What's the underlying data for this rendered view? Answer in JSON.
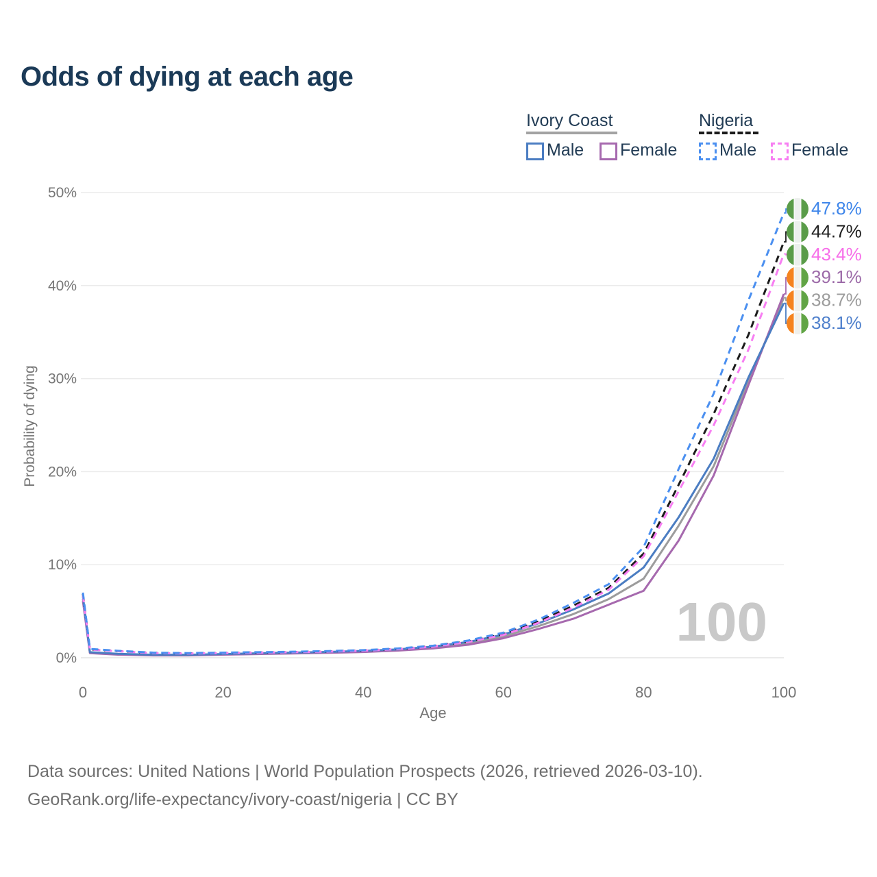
{
  "title": "Odds of dying at each age",
  "watermark": "100",
  "legend": {
    "groups": [
      {
        "label": "Ivory Coast",
        "line_style": "solid",
        "line_color": "#a3a3a3",
        "items": [
          {
            "label": "Male",
            "color": "#4b7dc2",
            "dash": false
          },
          {
            "label": "Female",
            "color": "#a669ae",
            "dash": false
          }
        ]
      },
      {
        "label": "Nigeria",
        "line_style": "dashed",
        "line_color": "#1b1b1b",
        "items": [
          {
            "label": "Male",
            "color": "#4a8ff0",
            "dash": true
          },
          {
            "label": "Female",
            "color": "#f77ef2",
            "dash": true
          }
        ]
      }
    ]
  },
  "footer": {
    "line1": "Data sources: United Nations | World Population Prospects (2026, retrieved 2026-03-10).",
    "line2": "GeoRank.org/life-expectancy/ivory-coast/nigeria | CC BY"
  },
  "chart_data": {
    "type": "line",
    "title": "Odds of dying at each age",
    "xlabel": "Age",
    "ylabel": "Probability of dying",
    "xlim": [
      0,
      100
    ],
    "ylim": [
      0,
      50
    ],
    "grid": true,
    "legend_position": "top-right",
    "x_ticks": [
      0,
      20,
      40,
      60,
      80,
      100
    ],
    "y_ticks": [
      {
        "value": 0,
        "label": "0%"
      },
      {
        "value": 10,
        "label": "10%"
      },
      {
        "value": 20,
        "label": "20%"
      },
      {
        "value": 30,
        "label": "30%"
      },
      {
        "value": 40,
        "label": "40%"
      },
      {
        "value": 50,
        "label": "50%"
      }
    ],
    "ages": [
      0,
      1,
      5,
      10,
      15,
      20,
      25,
      30,
      35,
      40,
      45,
      50,
      55,
      60,
      65,
      70,
      75,
      80,
      85,
      90,
      95,
      100
    ],
    "flags": {
      "nigeria": [
        "#5a9c49",
        "#edf0ee",
        "#5a9c49"
      ],
      "ivory-coast": [
        "#f5831f",
        "#f0f0ec",
        "#61a445"
      ]
    },
    "series": [
      {
        "name": "Ivory Coast Both sexes",
        "country": "Ivory Coast",
        "sex": "Both",
        "color": "#9c9c9c",
        "dash": false,
        "flag": "ivory-coast",
        "end_label": "38.7%",
        "label_color": "#9c9c9c",
        "values": [
          6.35,
          0.55,
          0.38,
          0.28,
          0.28,
          0.36,
          0.44,
          0.5,
          0.58,
          0.68,
          0.84,
          1.1,
          1.55,
          2.3,
          3.4,
          4.7,
          6.3,
          8.5,
          14.2,
          20.6,
          29.8,
          38.7
        ]
      },
      {
        "name": "Ivory Coast Female",
        "country": "Ivory Coast",
        "sex": "Female",
        "color": "#a669ae",
        "dash": false,
        "flag": "ivory-coast",
        "end_label": "39.1%",
        "label_color": "#9c6aa8",
        "values": [
          6.1,
          0.5,
          0.33,
          0.25,
          0.25,
          0.33,
          0.4,
          0.46,
          0.53,
          0.62,
          0.77,
          1.0,
          1.4,
          2.1,
          3.1,
          4.2,
          5.7,
          7.2,
          12.6,
          19.6,
          29.4,
          39.1
        ]
      },
      {
        "name": "Ivory Coast Male",
        "country": "Ivory Coast",
        "sex": "Male",
        "color": "#4b7dc2",
        "dash": false,
        "flag": "ivory-coast",
        "end_label": "38.1%",
        "label_color": "#4f80cc",
        "values": [
          6.6,
          0.6,
          0.42,
          0.32,
          0.32,
          0.4,
          0.48,
          0.55,
          0.63,
          0.74,
          0.9,
          1.2,
          1.7,
          2.5,
          3.7,
          5.2,
          6.9,
          9.7,
          15.1,
          21.4,
          30.2,
          38.1
        ]
      },
      {
        "name": "Nigeria Both sexes",
        "country": "Nigeria",
        "sex": "Both",
        "color": "#1b1b1b",
        "dash": true,
        "flag": "nigeria",
        "end_label": "44.7%",
        "label_color": "#1f1f1f",
        "values": [
          6.85,
          0.9,
          0.72,
          0.52,
          0.47,
          0.52,
          0.57,
          0.62,
          0.68,
          0.78,
          0.95,
          1.25,
          1.75,
          2.55,
          3.9,
          5.6,
          7.5,
          11.2,
          18.6,
          26.2,
          34.8,
          44.7
        ]
      },
      {
        "name": "Nigeria Female",
        "country": "Nigeria",
        "sex": "Female",
        "color": "#f77ef2",
        "dash": true,
        "flag": "nigeria",
        "end_label": "43.4%",
        "label_color": "#f76ee9",
        "values": [
          6.7,
          0.88,
          0.7,
          0.5,
          0.45,
          0.5,
          0.55,
          0.6,
          0.66,
          0.76,
          0.92,
          1.2,
          1.7,
          2.45,
          3.75,
          5.4,
          7.3,
          10.9,
          17.9,
          25.0,
          33.2,
          43.4
        ]
      },
      {
        "name": "Nigeria Male",
        "country": "Nigeria",
        "sex": "Male",
        "color": "#4a8ff0",
        "dash": true,
        "flag": "nigeria",
        "end_label": "47.8%",
        "label_color": "#3f86ea",
        "values": [
          7.0,
          0.95,
          0.75,
          0.55,
          0.5,
          0.55,
          0.6,
          0.65,
          0.72,
          0.82,
          1.0,
          1.3,
          1.85,
          2.7,
          4.1,
          5.9,
          7.9,
          11.9,
          20.3,
          28.4,
          38.5,
          47.8
        ]
      }
    ]
  }
}
